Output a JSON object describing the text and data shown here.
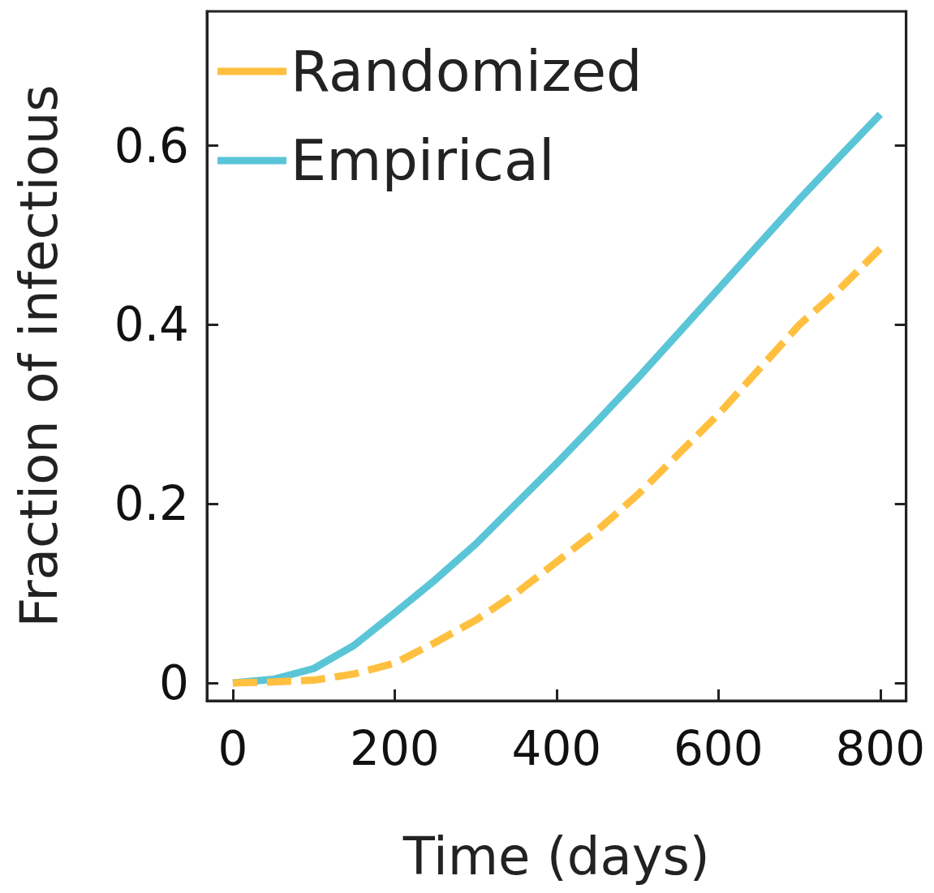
{
  "chart_data": {
    "type": "line",
    "xlabel": "Time (days)",
    "ylabel": "Fraction of infectious",
    "xlim": [
      -32,
      832
    ],
    "xticks": [
      0,
      200,
      400,
      600,
      800
    ],
    "ylim": [
      -0.02,
      0.75
    ],
    "yticks": [
      0,
      0.2,
      0.4,
      0.6
    ],
    "grid": false,
    "legend": "top left",
    "marker": "none",
    "series": [
      {
        "name": "Randomized",
        "color": "#ffc040",
        "line_style": "dashed",
        "x": [
          0,
          50,
          100,
          150,
          200,
          250,
          300,
          350,
          400,
          450,
          500,
          550,
          600,
          650,
          700,
          750,
          800
        ],
        "values": [
          0,
          0.001,
          0.003,
          0.01,
          0.022,
          0.045,
          0.07,
          0.1,
          0.135,
          0.17,
          0.21,
          0.255,
          0.3,
          0.35,
          0.4,
          0.44,
          0.485
        ]
      },
      {
        "name": "Empirical",
        "color": "#5bc5d8",
        "line_style": "solid",
        "x": [
          0,
          50,
          100,
          150,
          200,
          250,
          300,
          350,
          400,
          450,
          500,
          550,
          600,
          650,
          700,
          750,
          800
        ],
        "values": [
          0,
          0.004,
          0.016,
          0.042,
          0.078,
          0.115,
          0.155,
          0.2,
          0.245,
          0.292,
          0.34,
          0.39,
          0.44,
          0.49,
          0.54,
          0.588,
          0.635
        ]
      }
    ]
  }
}
